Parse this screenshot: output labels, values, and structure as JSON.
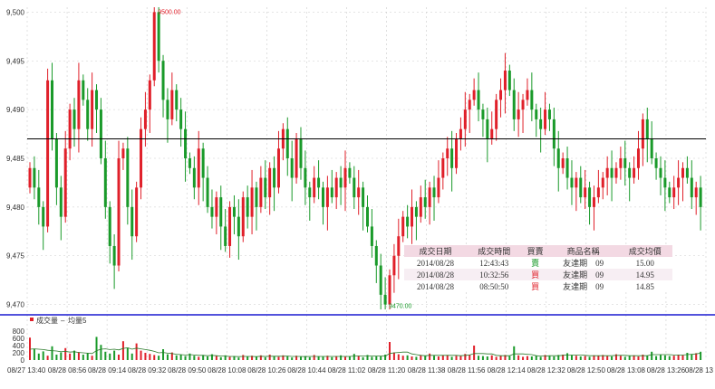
{
  "chart_data": [
    {
      "type": "candlestick",
      "y_ticks": [
        "9,500",
        "9,495",
        "9,490",
        "9,485",
        "9,480",
        "9,475",
        "9,470"
      ],
      "ylim": [
        9469.5,
        9500.5
      ],
      "reference_line": 9487,
      "annotations": {
        "high": "9500.00",
        "low": "9470.00"
      },
      "series": [
        {
          "name": "price",
          "values": [
            9484,
            9482,
            9480,
            9478,
            9493,
            9487,
            9482,
            9479,
            9486,
            9490,
            9488,
            9493,
            9491,
            9488,
            9492,
            9490,
            9485,
            9480,
            9476,
            9474,
            9485,
            9486,
            9480,
            9477,
            9482,
            9488,
            9490,
            9493,
            9500,
            9495,
            9491,
            9489,
            9492,
            9490,
            9488,
            9485,
            9484,
            9482,
            9486,
            9483,
            9480,
            9479,
            9481,
            9478,
            9476,
            9480,
            9479,
            9477,
            9481,
            9479,
            9482,
            9480,
            9483,
            9481,
            9484,
            9482,
            9486,
            9488,
            9485,
            9483,
            9487,
            9484,
            9482,
            9481,
            9483,
            9482,
            9480,
            9482,
            9481,
            9483,
            9482,
            9484,
            9483,
            9481,
            9482,
            9480,
            9478,
            9476,
            9474,
            9471,
            9470,
            9473,
            9475,
            9477,
            9479,
            9478,
            9480,
            9479,
            9481,
            9480,
            9482,
            9481,
            9483,
            9485,
            9486,
            9484,
            9487,
            9488,
            9490,
            9491,
            9492,
            9490,
            9489,
            9487,
            9488,
            9491,
            9492,
            9494,
            9492,
            9489,
            9490,
            9491,
            9492,
            9490,
            9489,
            9488,
            9490,
            9489,
            9486,
            9484,
            9485,
            9483,
            9482,
            9483,
            9481,
            9482,
            9480,
            9481,
            9482,
            9483,
            9484,
            9483,
            9484,
            9485,
            9484,
            9483,
            9484,
            9486,
            9489,
            9487,
            9485,
            9484,
            9483,
            9482,
            9481,
            9482,
            9483,
            9484,
            9483,
            9481,
            9482,
            9480
          ]
        }
      ]
    },
    {
      "type": "bar",
      "title": "成交量",
      "y_ticks": [
        "800",
        "600",
        "400",
        "200",
        "0"
      ],
      "ylim": [
        0,
        900
      ],
      "x_ticks": [
        "08/27 13:40",
        "08/28 08:56",
        "08/28 09:14",
        "08/28 09:32",
        "08/28 09:50",
        "08/28 10:08",
        "08/28 10:26",
        "08/28 10:44",
        "08/28 11:02",
        "08/28 11:20",
        "08/28 11:38",
        "08/28 11:56",
        "08/28 12:14",
        "08/28 12:32",
        "08/28 12:50",
        "08/28 13:08",
        "08/28 13:26",
        "08/28 13"
      ],
      "series": [
        {
          "name": "成交量",
          "values": [
            620,
            300,
            180,
            240,
            120,
            380,
            150,
            210,
            330,
            180,
            260,
            220,
            150,
            190,
            120,
            640,
            420,
            230,
            180,
            260,
            150,
            520,
            330,
            180,
            460,
            260,
            200,
            170,
            140,
            120,
            300,
            160,
            210,
            130,
            150,
            110,
            180,
            120,
            90,
            140,
            100,
            160,
            120,
            80,
            130,
            90,
            110,
            70,
            140,
            100,
            120,
            90,
            130,
            80,
            150,
            110,
            90,
            130,
            100,
            70,
            120,
            90,
            110,
            80,
            140,
            100,
            90,
            120,
            80,
            110,
            130,
            90,
            100,
            170,
            120,
            80,
            140,
            90,
            110,
            100,
            150,
            500,
            210,
            160,
            120,
            130,
            100,
            90,
            140,
            110,
            180,
            120,
            100,
            130,
            140,
            90,
            120,
            110,
            170,
            150,
            400,
            120,
            110,
            100,
            130,
            90,
            120,
            140,
            110,
            380,
            130,
            90,
            110,
            100,
            120,
            90,
            140,
            110,
            100,
            140,
            150,
            190,
            130,
            120,
            100,
            110,
            90,
            130,
            120,
            140,
            110,
            100,
            160,
            120,
            90,
            110,
            130,
            100,
            150,
            120,
            230,
            110,
            140,
            130,
            110,
            120,
            150,
            130,
            200,
            160,
            190,
            230
          ]
        },
        {
          "name": "均量5",
          "values": [
            300,
            310,
            300,
            290,
            270,
            260,
            250,
            230,
            240,
            220,
            230,
            210,
            200,
            190,
            180,
            260,
            300,
            310,
            290,
            300,
            280,
            320,
            340,
            300,
            330,
            310,
            290,
            270,
            240,
            200,
            210,
            190,
            180,
            160,
            150,
            140,
            150,
            140,
            130,
            130,
            120,
            130,
            120,
            110,
            110,
            100,
            100,
            95,
            100,
            100,
            100,
            95,
            105,
            100,
            105,
            105,
            105,
            105,
            110,
            100,
            100,
            100,
            95,
            100,
            100,
            100,
            100,
            100,
            100,
            100,
            100,
            100,
            100,
            110,
            110,
            110,
            110,
            110,
            110,
            110,
            110,
            180,
            200,
            210,
            220,
            220,
            170,
            150,
            130,
            120,
            130,
            130,
            130,
            130,
            130,
            130,
            130,
            120,
            130,
            140,
            180,
            180,
            180,
            170,
            170,
            130,
            120,
            120,
            120,
            170,
            170,
            170,
            160,
            150,
            120,
            110,
            110,
            120,
            120,
            120,
            130,
            140,
            140,
            140,
            140,
            130,
            120,
            120,
            120,
            120,
            120,
            120,
            130,
            130,
            130,
            120,
            120,
            120,
            120,
            120,
            150,
            150,
            150,
            150,
            150,
            140,
            140,
            140,
            150,
            160,
            170,
            190
          ]
        }
      ]
    }
  ],
  "volume_legend": {
    "volume_label": "成交量",
    "separator": "–",
    "avg_label": "均量5"
  },
  "trades_table": {
    "headers": [
      "成交日期",
      "成交時間",
      "買賣",
      "商品名稱",
      "成交均價"
    ],
    "rows": [
      {
        "date": "2014/08/28",
        "time": "12:43:43",
        "side": "賣",
        "product": "友達期　09",
        "price": "15.00"
      },
      {
        "date": "2014/08/28",
        "time": "10:32:56",
        "side": "買",
        "product": "友達期　09",
        "price": "14.95"
      },
      {
        "date": "2014/08/28",
        "time": "08:50:50",
        "side": "買",
        "product": "友達期　09",
        "price": "14.85"
      }
    ]
  },
  "colors": {
    "up": "#e0202a",
    "down": "#1a9a2a",
    "ref_line": "#000000",
    "divider": "#1a1ad0",
    "avg_line": "#2a7a2a",
    "grid": "#cccccc"
  }
}
